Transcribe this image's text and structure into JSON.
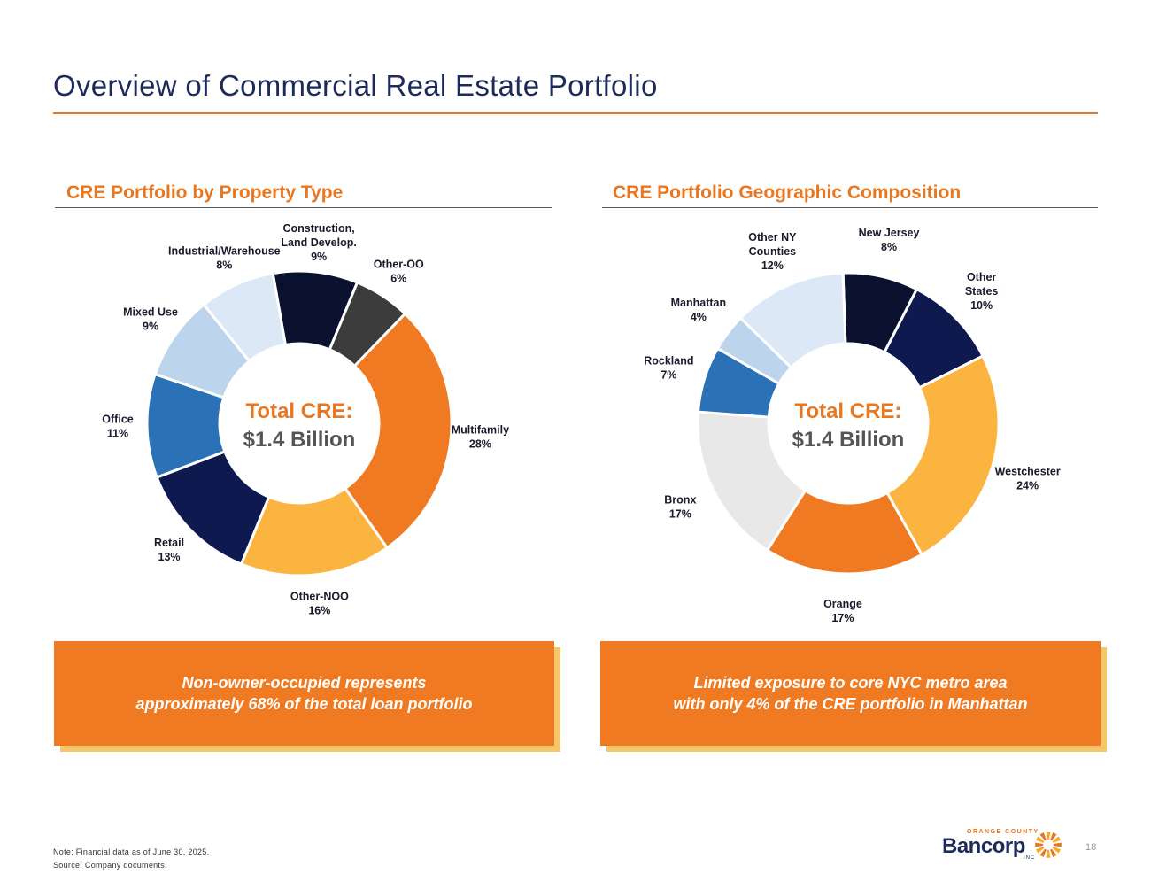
{
  "page": {
    "title": "Overview of Commercial Real Estate Portfolio",
    "page_number": "18"
  },
  "left_section": {
    "title": "CRE Portfolio by Property Type"
  },
  "right_section": {
    "title": "CRE Portfolio Geographic Composition"
  },
  "chart_data": [
    {
      "type": "pie",
      "title": "CRE Portfolio by Property Type",
      "center_text": [
        "Total CRE:",
        "$1.4 Billion"
      ],
      "slices": [
        {
          "name": "Construction, Land Develop.",
          "lines": [
            "Construction,",
            "Land Develop."
          ],
          "value": 9,
          "label": "9%",
          "color": "#0b1230"
        },
        {
          "name": "Other-OO",
          "lines": [
            "Other-OO"
          ],
          "value": 6,
          "label": "6%",
          "color": "#3c3c3c"
        },
        {
          "name": "Multifamily",
          "lines": [
            "Multifamily"
          ],
          "value": 28,
          "label": "28%",
          "color": "#ef7a22"
        },
        {
          "name": "Other-NOO",
          "lines": [
            "Other-NOO"
          ],
          "value": 16,
          "label": "16%",
          "color": "#fbb440"
        },
        {
          "name": "Retail",
          "lines": [
            "Retail"
          ],
          "value": 13,
          "label": "13%",
          "color": "#0e1a4f"
        },
        {
          "name": "Office",
          "lines": [
            "Office"
          ],
          "value": 11,
          "label": "11%",
          "color": "#2b71b5"
        },
        {
          "name": "Mixed Use",
          "lines": [
            "Mixed Use"
          ],
          "value": 9,
          "label": "9%",
          "color": "#bcd5ed"
        },
        {
          "name": "Industrial/Warehouse",
          "lines": [
            "Industrial/Warehouse"
          ],
          "value": 8,
          "label": "8%",
          "color": "#dce8f5"
        }
      ]
    },
    {
      "type": "pie",
      "title": "CRE Portfolio Geographic Composition",
      "center_text": [
        "Total CRE:",
        "$1.4 Billion"
      ],
      "slices": [
        {
          "name": "New Jersey",
          "lines": [
            "New Jersey"
          ],
          "value": 8,
          "label": "8%",
          "color": "#0b1230"
        },
        {
          "name": "Other States",
          "lines": [
            "Other",
            "States"
          ],
          "value": 10,
          "label": "10%",
          "color": "#0e1a4f"
        },
        {
          "name": "Westchester",
          "lines": [
            "Westchester"
          ],
          "value": 24,
          "label": "24%",
          "color": "#fbb440"
        },
        {
          "name": "Orange",
          "lines": [
            "Orange"
          ],
          "value": 17,
          "label": "17%",
          "color": "#ef7a22"
        },
        {
          "name": "Bronx",
          "lines": [
            "Bronx"
          ],
          "value": 17,
          "label": "17%",
          "color": "#e8e8e8"
        },
        {
          "name": "Rockland",
          "lines": [
            "Rockland"
          ],
          "value": 7,
          "label": "7%",
          "color": "#2b71b5"
        },
        {
          "name": "Manhattan",
          "lines": [
            "Manhattan"
          ],
          "value": 4,
          "label": "4%",
          "color": "#bcd5ed"
        },
        {
          "name": "Other NY Counties",
          "lines": [
            "Other NY",
            "Counties"
          ],
          "value": 12,
          "label": "12%",
          "color": "#dce8f5"
        }
      ]
    }
  ],
  "callouts": {
    "left": [
      "Non-owner-occupied represents",
      "approximately 68% of the total loan portfolio"
    ],
    "right": [
      "Limited exposure to core NYC metro area",
      "with only 4% of the CRE portfolio in Manhattan"
    ]
  },
  "footer": {
    "note": "Note: Financial data as of June 30, 2025.",
    "source": "Source: Company documents."
  },
  "logo": {
    "small": "ORANGE COUNTY",
    "main": "Bancorp",
    "inc": "INC"
  }
}
